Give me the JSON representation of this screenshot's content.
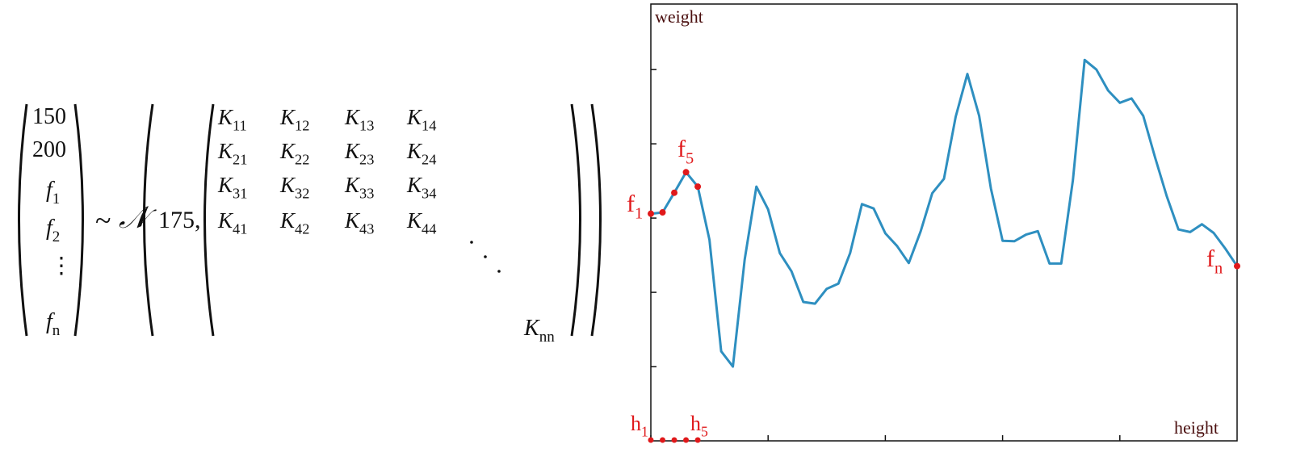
{
  "equation": {
    "vector": [
      "150",
      "200",
      "f1",
      "f2",
      "⋮",
      "fn"
    ],
    "vector_items": [
      {
        "text": "150",
        "sub": ""
      },
      {
        "text": "200",
        "sub": ""
      },
      {
        "text": "f",
        "sub": "1"
      },
      {
        "text": "f",
        "sub": "2"
      },
      {
        "text": "⋮",
        "sub": ""
      },
      {
        "text": "f",
        "sub": "n"
      }
    ],
    "tilde": "~",
    "normal_symbol": "𝒩",
    "mean": "175,",
    "cov_rows": [
      [
        {
          "m": "K",
          "s": "11"
        },
        {
          "m": "K",
          "s": "12"
        },
        {
          "m": "K",
          "s": "13"
        },
        {
          "m": "K",
          "s": "14"
        }
      ],
      [
        {
          "m": "K",
          "s": "21"
        },
        {
          "m": "K",
          "s": "22"
        },
        {
          "m": "K",
          "s": "23"
        },
        {
          "m": "K",
          "s": "24"
        }
      ],
      [
        {
          "m": "K",
          "s": "31"
        },
        {
          "m": "K",
          "s": "32"
        },
        {
          "m": "K",
          "s": "33"
        },
        {
          "m": "K",
          "s": "34"
        }
      ],
      [
        {
          "m": "K",
          "s": "41"
        },
        {
          "m": "K",
          "s": "42"
        },
        {
          "m": "K",
          "s": "43"
        },
        {
          "m": "K",
          "s": "44"
        }
      ]
    ],
    "cov_dots": "· · ·",
    "cov_last": {
      "m": "K",
      "s": "nn"
    }
  },
  "plot": {
    "y_label": "weight",
    "x_label": "height",
    "line_color": "#2e8fc0",
    "point_color": "#e0191b",
    "annotations": {
      "f1": {
        "m": "f",
        "s": "1"
      },
      "f5": {
        "m": "f",
        "s": "5"
      },
      "fn": {
        "m": "f",
        "s": "n"
      },
      "h1": {
        "m": "h",
        "s": "1"
      },
      "h5": {
        "m": "h",
        "s": "5"
      }
    }
  },
  "chart_data": {
    "type": "line",
    "title": "",
    "xlabel": "height",
    "ylabel": "weight",
    "x": [
      0,
      3,
      6,
      9,
      12,
      15,
      18,
      21,
      24,
      27,
      30,
      33,
      36,
      39,
      42,
      45,
      48,
      51,
      54,
      57,
      60,
      63,
      66,
      69,
      72,
      75,
      78,
      81,
      84,
      87,
      90,
      93,
      96,
      99,
      102,
      105,
      108,
      111,
      114,
      117,
      120,
      123,
      126,
      129,
      132,
      135,
      138,
      141,
      144,
      147,
      150
    ],
    "series": [
      {
        "values": [
          0.52,
          0.523,
          0.568,
          0.615,
          0.582,
          0.46,
          0.205,
          0.17,
          0.415,
          0.582,
          0.53,
          0.43,
          0.388,
          0.318,
          0.314,
          0.348,
          0.36,
          0.43,
          0.542,
          0.532,
          0.475,
          0.446,
          0.407,
          0.479,
          0.567,
          0.6,
          0.742,
          0.84,
          0.744,
          0.578,
          0.458,
          0.457,
          0.472,
          0.48,
          0.406,
          0.406,
          0.597,
          0.872,
          0.85,
          0.802,
          0.774,
          0.784,
          0.744,
          0.649,
          0.56,
          0.484,
          0.478,
          0.496,
          0.476,
          0.44,
          0.4
        ],
        "highlighted_indices": [
          0,
          1,
          2,
          3,
          4,
          50
        ]
      }
    ],
    "x_ticks": [
      0,
      30,
      60,
      90,
      120
    ],
    "y_ticks": [
      0.17,
      0.34,
      0.51,
      0.68,
      0.85
    ],
    "xlim": [
      0,
      150
    ],
    "ylim": [
      0,
      1
    ],
    "grid": false,
    "legend": "none"
  }
}
